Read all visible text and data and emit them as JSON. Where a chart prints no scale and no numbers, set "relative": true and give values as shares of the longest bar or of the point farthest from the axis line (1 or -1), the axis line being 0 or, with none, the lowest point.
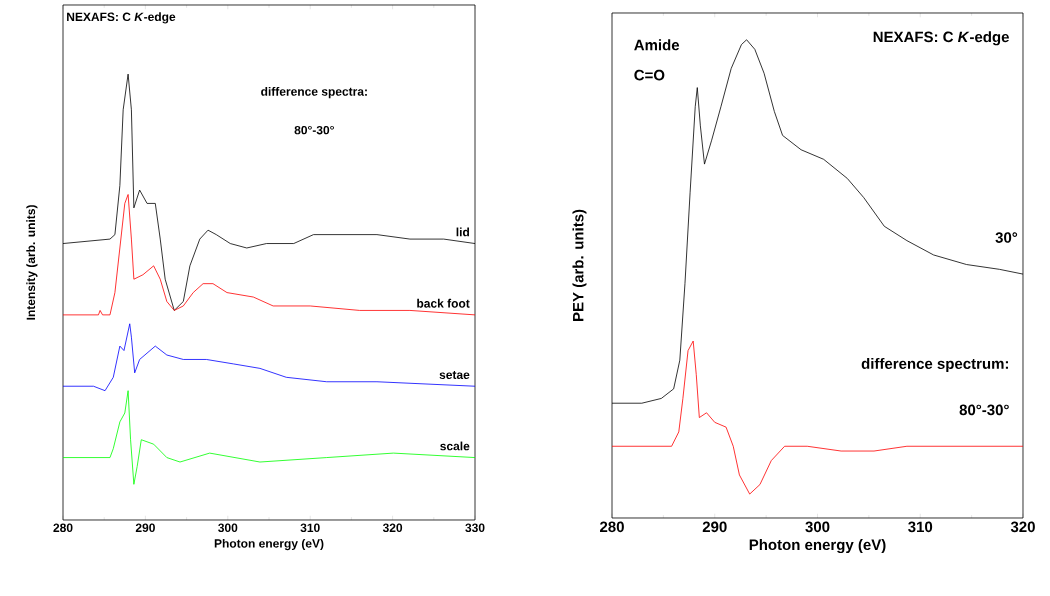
{
  "chart_data": [
    {
      "type": "line",
      "xlabel": "Photon energy (eV)",
      "ylabel": "Intensity (arb. units)",
      "relative": true,
      "xlim": [
        280,
        330
      ],
      "xticks": [
        280,
        290,
        300,
        310,
        320,
        330
      ],
      "annotations": [
        "NEXAFS: C *K*-edge",
        "difference spectra:",
        "80°-30°"
      ],
      "series": [
        {
          "name": "lid",
          "color": "#000000",
          "x": [
            280,
            285.7,
            286.3,
            286.9,
            287.3,
            287.9,
            288.3,
            288.6,
            289.3,
            290.2,
            291.2,
            291.8,
            292.4,
            293.5,
            294.6,
            295.4,
            296.6,
            297.6,
            298.6,
            300.3,
            302.3,
            304.7,
            308.0,
            310.4,
            313.2,
            318.1,
            322.1,
            326.2,
            330
          ],
          "values": [
            0.62,
            0.63,
            0.64,
            0.75,
            0.92,
            1.0,
            0.92,
            0.7,
            0.74,
            0.71,
            0.71,
            0.63,
            0.54,
            0.47,
            0.49,
            0.57,
            0.63,
            0.65,
            0.64,
            0.62,
            0.61,
            0.62,
            0.62,
            0.64,
            0.64,
            0.64,
            0.63,
            0.63,
            0.62
          ]
        },
        {
          "name": "back foot",
          "color": "#ff0000",
          "x": [
            280,
            284.3,
            284.5,
            284.8,
            285.7,
            286.3,
            286.9,
            287.5,
            287.9,
            288.3,
            288.6,
            289.7,
            291.0,
            291.8,
            292.6,
            293.5,
            294.6,
            295.8,
            297.0,
            298.2,
            299.9,
            303.1,
            305.5,
            310.0,
            316.0,
            322.1,
            330
          ],
          "values": [
            0.46,
            0.46,
            0.47,
            0.46,
            0.46,
            0.51,
            0.61,
            0.71,
            0.73,
            0.63,
            0.54,
            0.55,
            0.57,
            0.54,
            0.49,
            0.47,
            0.48,
            0.51,
            0.53,
            0.53,
            0.51,
            0.5,
            0.48,
            0.48,
            0.47,
            0.47,
            0.46
          ]
        },
        {
          "name": "setae",
          "color": "#0000ff",
          "x": [
            280,
            283.7,
            285.1,
            286.1,
            286.9,
            287.4,
            288.1,
            288.3,
            288.7,
            289.3,
            291.2,
            292.6,
            294.6,
            297.4,
            300.7,
            303.9,
            307.1,
            312.0,
            318.1,
            330
          ],
          "values": [
            0.3,
            0.3,
            0.29,
            0.32,
            0.39,
            0.38,
            0.44,
            0.41,
            0.33,
            0.36,
            0.39,
            0.37,
            0.36,
            0.36,
            0.35,
            0.34,
            0.32,
            0.31,
            0.31,
            0.3
          ]
        },
        {
          "name": "scale",
          "color": "#00ff00",
          "x": [
            280,
            285.7,
            286.1,
            286.9,
            287.5,
            287.9,
            288.2,
            288.6,
            289.0,
            289.5,
            291.0,
            292.6,
            294.2,
            297.8,
            303.9,
            312.0,
            320.1,
            330
          ],
          "values": [
            0.14,
            0.14,
            0.16,
            0.22,
            0.24,
            0.29,
            0.18,
            0.08,
            0.12,
            0.18,
            0.17,
            0.14,
            0.13,
            0.15,
            0.13,
            0.14,
            0.15,
            0.14
          ]
        }
      ]
    },
    {
      "type": "line",
      "xlabel": "Photon energy (eV)",
      "ylabel": "PEY (arb. units)",
      "relative": true,
      "xlim": [
        280,
        320
      ],
      "xticks": [
        280,
        290,
        300,
        310,
        320
      ],
      "annotations": [
        "Amide",
        "C=O",
        "NEXAFS: C *K*-edge",
        "difference spectrum:",
        "80°-30°"
      ],
      "series": [
        {
          "name": "30°",
          "color": "#000000",
          "x": [
            280,
            282.9,
            284.8,
            286.0,
            286.6,
            287.1,
            287.6,
            288.1,
            288.3,
            288.6,
            289.0,
            289.7,
            290.6,
            291.6,
            292.6,
            293.1,
            293.9,
            294.8,
            295.8,
            296.6,
            298.4,
            300.6,
            302.9,
            304.5,
            306.5,
            308.7,
            311.3,
            314.5,
            317.7,
            320
          ],
          "values": [
            0.24,
            0.24,
            0.25,
            0.27,
            0.33,
            0.49,
            0.68,
            0.86,
            0.9,
            0.82,
            0.74,
            0.79,
            0.86,
            0.94,
            0.99,
            1.0,
            0.98,
            0.93,
            0.85,
            0.8,
            0.77,
            0.75,
            0.71,
            0.67,
            0.61,
            0.58,
            0.55,
            0.53,
            0.52,
            0.51
          ]
        },
        {
          "color": "#ff0000",
          "x": [
            280,
            285.8,
            286.5,
            286.9,
            287.4,
            287.9,
            288.2,
            288.5,
            289.2,
            290.0,
            291.1,
            291.8,
            292.4,
            293.4,
            294.4,
            295.5,
            296.8,
            299.0,
            302.3,
            305.5,
            308.7,
            315.2,
            320
          ],
          "values": [
            0.15,
            0.15,
            0.18,
            0.25,
            0.35,
            0.37,
            0.3,
            0.21,
            0.22,
            0.2,
            0.19,
            0.15,
            0.09,
            0.05,
            0.07,
            0.12,
            0.15,
            0.15,
            0.14,
            0.14,
            0.15,
            0.15,
            0.15
          ]
        }
      ]
    }
  ]
}
